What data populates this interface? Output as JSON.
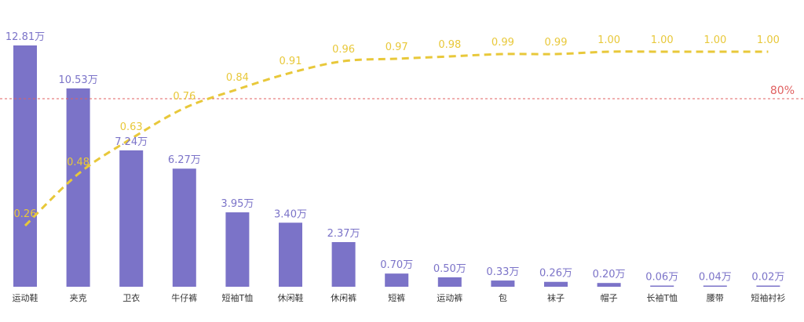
{
  "chart_data": {
    "type": "bar",
    "categories": [
      "运动鞋",
      "夹克",
      "卫衣",
      "牛仔裤",
      "短袖T恤",
      "休闲鞋",
      "休闲裤",
      "短裤",
      "运动裤",
      "包",
      "袜子",
      "帽子",
      "长袖T恤",
      "腰带",
      "短袖衬衫"
    ],
    "series": [
      {
        "type": "bar",
        "values": [
          12.81,
          10.53,
          7.24,
          6.27,
          3.95,
          3.4,
          2.37,
          0.7,
          0.5,
          0.33,
          0.26,
          0.2,
          0.06,
          0.04,
          0.02
        ],
        "labels": [
          "12.81万",
          "10.53万",
          "7.24万",
          "6.27万",
          "3.95万",
          "3.40万",
          "2.37万",
          "0.70万",
          "0.50万",
          "0.33万",
          "0.26万",
          "0.20万",
          "0.06万",
          "0.04万",
          "0.02万"
        ],
        "color": "#7b73c8"
      },
      {
        "type": "line",
        "values": [
          0.26,
          0.48,
          0.63,
          0.76,
          0.84,
          0.91,
          0.96,
          0.97,
          0.98,
          0.99,
          0.99,
          1.0,
          1.0,
          1.0,
          1.0
        ],
        "labels": [
          "0.26",
          "0.48",
          "0.63",
          "0.76",
          "0.84",
          "0.91",
          "0.96",
          "0.97",
          "0.98",
          "0.99",
          "0.99",
          "1.00",
          "1.00",
          "1.00",
          "1.00"
        ],
        "color": "#e8c83a",
        "style": "dashed"
      }
    ],
    "reference_line": {
      "value": 0.8,
      "label": "80%",
      "color": "#e06060"
    },
    "bar_ylim": [
      0,
      13.5
    ],
    "line_ylim": [
      0,
      1.25
    ],
    "grid": false,
    "legend": "none"
  }
}
